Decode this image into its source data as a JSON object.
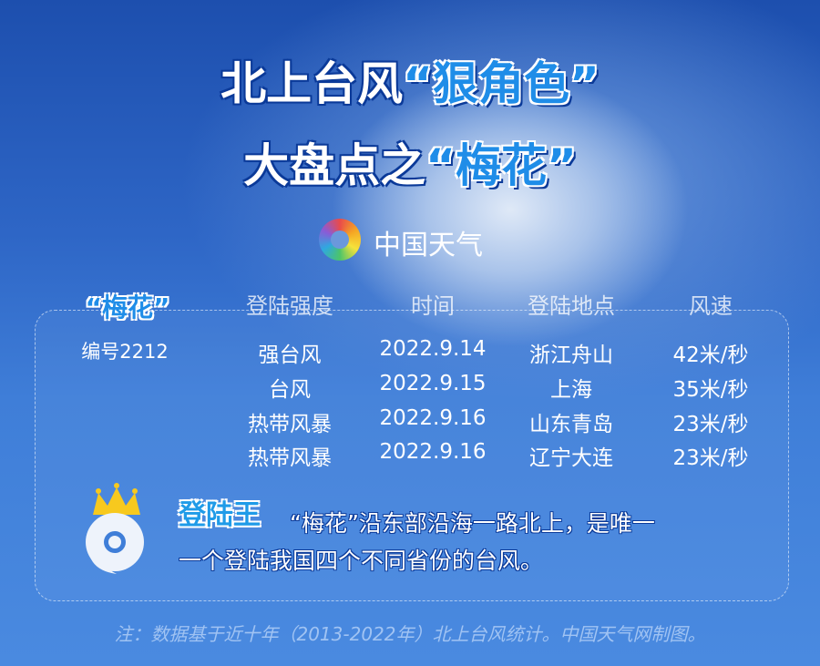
{
  "title": {
    "line1_a": "北上台风",
    "line1_b": "“狠角色”",
    "line2_a": "大盘点之",
    "line2_b": "“梅花”"
  },
  "logo": {
    "text": "中国天气",
    "icon": "china-weather-logo-icon"
  },
  "typhoon": {
    "name": "“梅花”",
    "number": "编号2212"
  },
  "table": {
    "headers": [
      "登陆强度",
      "时间",
      "登陆地点",
      "风速"
    ],
    "rows": [
      [
        "强台风",
        "2022.9.14",
        "浙江舟山",
        "42米/秒"
      ],
      [
        "台风",
        "2022.9.15",
        "上海",
        "35米/秒"
      ],
      [
        "热带风暴",
        "2022.9.16",
        "山东青岛",
        "23米/秒"
      ],
      [
        "热带风暴",
        "2022.9.16",
        "辽宁大连",
        "23米/秒"
      ]
    ]
  },
  "highlight": {
    "label": "登陆王",
    "line1": "“梅花”沿东部沿海一路北上，是唯一",
    "line2": "一个登陆我国四个不同省份的台风。",
    "icon": "crowned-typhoon-icon"
  },
  "note": "注：数据基于近十年（2013-2022年）北上台风统计。中国天气网制图。",
  "colors": {
    "accent": "#1f8de8",
    "background": "#3f7ed8",
    "crown": "#f7c91e"
  }
}
